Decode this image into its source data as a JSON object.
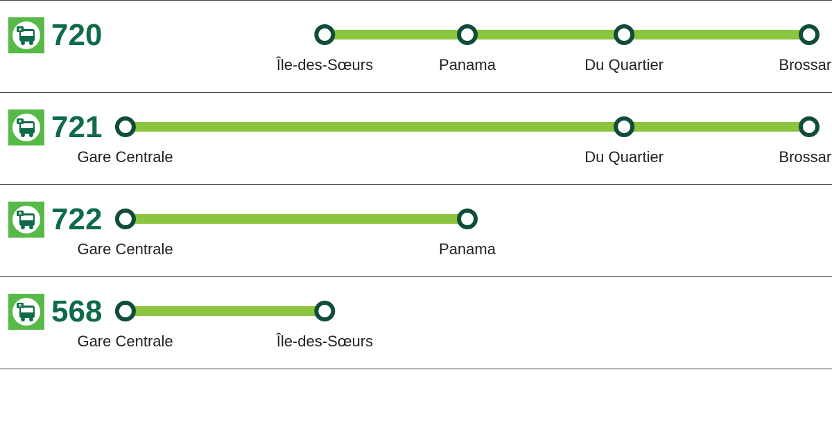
{
  "colors": {
    "icon_bg": "#57b947",
    "number": "#0f6b47",
    "track": "#8bc53f",
    "stop_border": "#0f4d3a",
    "stop_fill": "#ffffff",
    "label": "#222222",
    "divider": "#444444"
  },
  "layout": {
    "diagram_width_pct": 100,
    "stop_circle_diameter": 30,
    "stop_border_width": 6,
    "track_height": 14
  },
  "all_stops_order": [
    "Gare Centrale",
    "Île-des-Sœurs",
    "Panama",
    "Du Quartier",
    "Brossard"
  ],
  "stop_positions_pct": {
    "Gare Centrale": 2,
    "Île-des-Sœurs": 30,
    "Panama": 50,
    "Du Quartier": 72,
    "Brossard": 98
  },
  "routes": [
    {
      "number": "720",
      "stops": [
        "Île-des-Sœurs",
        "Panama",
        "Du Quartier",
        "Brossard"
      ]
    },
    {
      "number": "721",
      "stops": [
        "Gare Centrale",
        "Du Quartier",
        "Brossard"
      ]
    },
    {
      "number": "722",
      "stops": [
        "Gare Centrale",
        "Panama"
      ]
    },
    {
      "number": "568",
      "stops": [
        "Gare Centrale",
        "Île-des-Sœurs"
      ]
    }
  ]
}
